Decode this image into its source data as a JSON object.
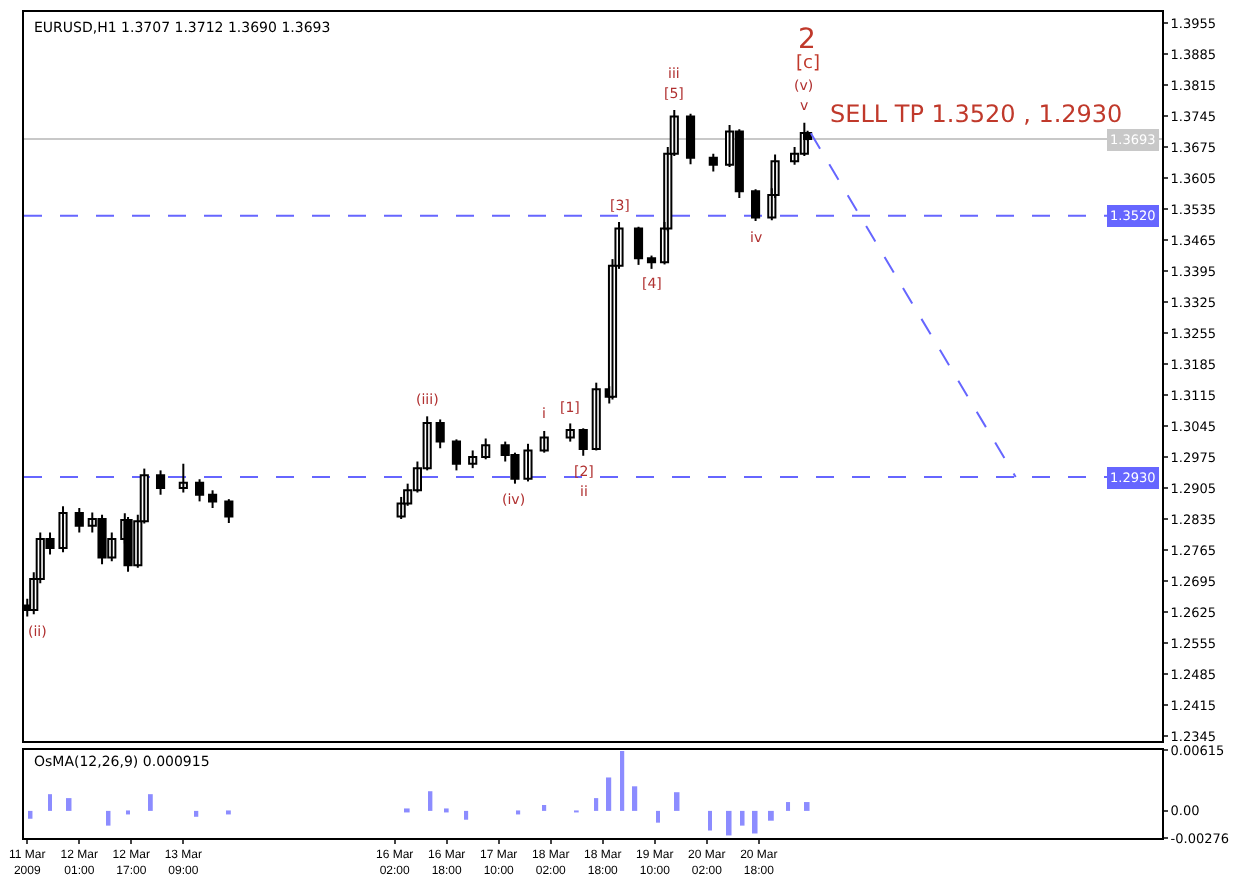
{
  "chart_data": [
    {
      "type": "candlestick",
      "title": "EURUSD,H1 1.3707 1.3712 1.3690 1.3693",
      "x": [
        "2009-03-11T09:00",
        "2009-03-11T11:00",
        "2009-03-11T13:00",
        "2009-03-11T16:00",
        "2009-03-11T20:00",
        "2009-03-12T01:00",
        "2009-03-12T05:00",
        "2009-03-12T08:00",
        "2009-03-12T11:00",
        "2009-03-12T15:00",
        "2009-03-12T16:00",
        "2009-03-12T19:00",
        "2009-03-12T21:00",
        "2009-03-13T02:00",
        "2009-03-13T09:00",
        "2009-03-13T14:00",
        "2009-03-13T18:00",
        "2009-03-13T23:00",
        "2009-03-16T04:00",
        "2009-03-16T06:00",
        "2009-03-16T09:00",
        "2009-03-16T12:00",
        "2009-03-16T16:00",
        "2009-03-16T21:00",
        "2009-03-17T02:00",
        "2009-03-17T06:00",
        "2009-03-17T12:00",
        "2009-03-17T15:00",
        "2009-03-17T19:00",
        "2009-03-18T00:00",
        "2009-03-18T08:00",
        "2009-03-18T12:00",
        "2009-03-18T16:00",
        "2009-03-18T20:00",
        "2009-03-18T21:00",
        "2009-03-18T23:00",
        "2009-03-19T05:00",
        "2009-03-19T09:00",
        "2009-03-19T13:00",
        "2009-03-19T14:00",
        "2009-03-19T16:00",
        "2009-03-19T21:00",
        "2009-03-20T04:00",
        "2009-03-20T09:00",
        "2009-03-20T12:00",
        "2009-03-20T17:00",
        "2009-03-20T22:00",
        "2009-03-20T23:00",
        "2009-03-21T05:00",
        "2009-03-21T08:00",
        "2009-03-21T09:00"
      ],
      "ohlc": [
        [
          1.264,
          1.2655,
          1.2615,
          1.263
        ],
        [
          1.263,
          1.2715,
          1.262,
          1.27
        ],
        [
          1.27,
          1.2805,
          1.269,
          1.279
        ],
        [
          1.279,
          1.2805,
          1.2755,
          1.277
        ],
        [
          1.277,
          1.2864,
          1.276,
          1.2849
        ],
        [
          1.2849,
          1.286,
          1.2805,
          1.282
        ],
        [
          1.282,
          1.285,
          1.2805,
          1.2835
        ],
        [
          1.2835,
          1.2845,
          1.2733,
          1.2748
        ],
        [
          1.2748,
          1.2805,
          1.274,
          1.279
        ],
        [
          1.279,
          1.2848,
          1.278,
          1.2833
        ],
        [
          1.2833,
          1.284,
          1.2716,
          1.2731
        ],
        [
          1.2731,
          1.2845,
          1.2725,
          1.283
        ],
        [
          1.283,
          1.2949,
          1.2825,
          1.2934
        ],
        [
          1.2934,
          1.2945,
          1.289,
          1.2905
        ],
        [
          1.2905,
          1.296,
          1.2895,
          1.2917
        ],
        [
          1.2917,
          1.2925,
          1.2875,
          1.289
        ],
        [
          1.289,
          1.29,
          1.286,
          1.2875
        ],
        [
          1.2875,
          1.288,
          1.2826,
          1.2841
        ],
        [
          1.2841,
          1.2885,
          1.2835,
          1.287
        ],
        [
          1.287,
          1.2915,
          1.2865,
          1.29
        ],
        [
          1.29,
          1.2965,
          1.2895,
          1.295
        ],
        [
          1.295,
          1.3067,
          1.2945,
          1.3052
        ],
        [
          1.3052,
          1.306,
          1.2995,
          1.301
        ],
        [
          1.301,
          1.3015,
          1.2945,
          1.296
        ],
        [
          1.296,
          1.299,
          1.295,
          1.2975
        ],
        [
          1.2975,
          1.3017,
          1.297,
          1.3002
        ],
        [
          1.3002,
          1.301,
          1.2965,
          1.298
        ],
        [
          1.298,
          1.2985,
          1.2915,
          1.2926
        ],
        [
          1.2926,
          1.3005,
          1.292,
          1.299
        ],
        [
          1.299,
          1.3034,
          1.2985,
          1.3019
        ],
        [
          1.3019,
          1.3051,
          1.301,
          1.3036
        ],
        [
          1.3036,
          1.304,
          1.2978,
          1.2993
        ],
        [
          1.2993,
          1.3143,
          1.299,
          1.3128
        ],
        [
          1.3128,
          1.3135,
          1.3096,
          1.3111
        ],
        [
          1.3111,
          1.3422,
          1.3105,
          1.3407
        ],
        [
          1.3407,
          1.3506,
          1.34,
          1.3491
        ],
        [
          1.3491,
          1.3495,
          1.3409,
          1.3424
        ],
        [
          1.3424,
          1.343,
          1.34,
          1.3415
        ],
        [
          1.3415,
          1.3506,
          1.341,
          1.3491
        ],
        [
          1.3491,
          1.3675,
          1.3485,
          1.366
        ],
        [
          1.366,
          1.3759,
          1.3655,
          1.3744
        ],
        [
          1.3744,
          1.375,
          1.3636,
          1.3651
        ],
        [
          1.3651,
          1.366,
          1.362,
          1.3635
        ],
        [
          1.3635,
          1.3725,
          1.363,
          1.371
        ],
        [
          1.371,
          1.3715,
          1.356,
          1.3575
        ],
        [
          1.3575,
          1.358,
          1.3508,
          1.3516
        ],
        [
          1.3516,
          1.3582,
          1.351,
          1.3567
        ],
        [
          1.3567,
          1.3658,
          1.356,
          1.3643
        ],
        [
          1.3643,
          1.3675,
          1.3635,
          1.366
        ],
        [
          1.366,
          1.373,
          1.3655,
          1.3707
        ],
        [
          1.3707,
          1.3712,
          1.369,
          1.3693
        ]
      ],
      "color": "#000000",
      "xlim": [
        "2009-03-11T08:00",
        "2009-03-25T22:00"
      ],
      "ylim": [
        1.2335,
        1.398
      ],
      "yticks": [
        1.3955,
        1.3885,
        1.3815,
        1.3745,
        1.3675,
        1.3605,
        1.3535,
        1.3465,
        1.3395,
        1.3325,
        1.3255,
        1.3185,
        1.3115,
        1.3045,
        1.2975,
        1.2905,
        1.2835,
        1.2765,
        1.2695,
        1.2625,
        1.2555,
        1.2485,
        1.2415,
        1.2345
      ],
      "series": [
        {
          "type": "line",
          "x": [
            "2009-03-21T10:00",
            "2009-03-24T01:00"
          ],
          "values": [
            1.3706,
            1.293
          ],
          "color": "#6666ff",
          "line_style": "dashed"
        }
      ],
      "ref_lines": [
        {
          "axis": "y",
          "value": 1.352,
          "label": "1.3520",
          "color": "#6666ff",
          "line_style": "dashed"
        },
        {
          "axis": "y",
          "value": 1.293,
          "label": "1.2930",
          "color": "#6666ff",
          "line_style": "dashed"
        },
        {
          "axis": "y",
          "value": 1.3693,
          "label": "1.3693",
          "color": "#c8c8c8",
          "line_style": "solid"
        }
      ],
      "annotations": [
        "2",
        "[c]",
        {
          "text": "(v)",
          "x": "2009-03-21T08:00",
          "y": 1.373
        },
        {
          "text": "v",
          "x": "2009-03-21T08:00",
          "y": 1.373
        },
        {
          "text": "iii",
          "x": "2009-03-19T16:00",
          "y": 1.3759
        },
        {
          "text": "[5]",
          "x": "2009-03-19T16:00",
          "y": 1.3759
        },
        {
          "text": "[3]",
          "x": "2009-03-18T23:00",
          "y": 1.3506
        },
        {
          "text": "[4]",
          "x": "2009-03-19T09:00",
          "y": 1.34
        },
        {
          "text": "iv",
          "x": "2009-03-20T17:00",
          "y": 1.3508
        },
        {
          "text": "(iii)",
          "x": "2009-03-16T12:00",
          "y": 1.3067
        },
        {
          "text": "i",
          "x": "2009-03-18T00:00",
          "y": 1.3034
        },
        {
          "text": "[1]",
          "x": "2009-03-18T08:00",
          "y": 1.3051
        },
        {
          "text": "[2]",
          "x": "2009-03-18T12:00",
          "y": 1.2978
        },
        {
          "text": "ii",
          "x": "2009-03-18T12:00",
          "y": 1.2978
        },
        {
          "text": "(iv)",
          "x": "2009-03-17T15:00",
          "y": 1.2915
        },
        {
          "text": "(ii)",
          "x": "2009-03-11T09:00",
          "y": 1.2615
        },
        "SELL TP 1.3520 , 1.2930"
      ],
      "tick_labels": "y"
    },
    {
      "type": "bar",
      "title": "OsMA(12,26,9) 0.000915",
      "x": [
        "2009-03-11T10:00",
        "2009-03-11T16:00",
        "2009-03-11T22:00",
        "2009-03-12T03:00",
        "2009-03-12T10:00",
        "2009-03-12T16:00",
        "2009-03-12T23:00",
        "2009-03-13T06:00",
        "2009-03-13T13:00",
        "2009-03-13T23:00",
        "2009-03-16T06:00",
        "2009-03-16T13:00",
        "2009-03-16T18:00",
        "2009-03-17T00:00",
        "2009-03-17T06:00",
        "2009-03-17T16:00",
        "2009-03-18T00:00",
        "2009-03-18T10:00",
        "2009-03-18T16:00",
        "2009-03-18T20:00",
        "2009-03-19T00:00",
        "2009-03-19T04:00",
        "2009-03-19T07:00",
        "2009-03-19T11:00",
        "2009-03-19T17:00",
        "2009-03-19T22:00",
        "2009-03-20T03:00",
        "2009-03-20T09:00",
        "2009-03-20T13:00",
        "2009-03-20T17:00",
        "2009-03-20T22:00",
        "2009-03-21T03:00",
        "2009-03-21T09:00"
      ],
      "values": [
        -0.0008,
        0.0017,
        0.0013,
        0,
        -0.0015,
        -0.0003,
        0.0017,
        0,
        -0.0006,
        -0.0003,
        0.0002,
        0.002,
        0.0002,
        -0.0009,
        0,
        -0.0002,
        0.0006,
        -0.0001,
        0.0013,
        0.0034,
        0.0061,
        0.0025,
        0,
        -0.0012,
        0.0019,
        0,
        -0.002,
        -0.0025,
        -0.0015,
        -0.0023,
        -0.001,
        0.0009,
        0.0009
      ],
      "color": "#8c8cff",
      "xlim": [
        "2009-03-11T08:00",
        "2009-03-25T22:00"
      ],
      "ylim": [
        -0.00276,
        0.00615
      ],
      "yticks": [
        0.00615,
        {
          "value": 0,
          "label": "0.00"
        },
        -0.00276
      ],
      "xticks": [
        {
          "value": "2009-03-11T09:00",
          "label": "11 Mar 2009"
        },
        {
          "value": "2009-03-12T01:00",
          "label": "12 Mar 01:00"
        },
        {
          "value": "2009-03-12T17:00",
          "label": "12 Mar 17:00"
        },
        {
          "value": "2009-03-13T09:00",
          "label": "13 Mar 09:00"
        },
        {
          "value": "2009-03-16T02:00",
          "label": "16 Mar 02:00"
        },
        {
          "value": "2009-03-16T18:00",
          "label": "16 Mar 18:00"
        },
        {
          "value": "2009-03-17T10:00",
          "label": "17 Mar 10:00"
        },
        {
          "value": "2009-03-18T02:00",
          "label": "18 Mar 02:00"
        },
        {
          "value": "2009-03-18T18:00",
          "label": "18 Mar 18:00"
        },
        {
          "value": "2009-03-19T10:00",
          "label": "19 Mar 10:00"
        },
        {
          "value": "2009-03-20T02:00",
          "label": "20 Mar 02:00"
        },
        {
          "value": "2009-03-20T18:00",
          "label": "20 Mar 18:00"
        }
      ]
    }
  ]
}
